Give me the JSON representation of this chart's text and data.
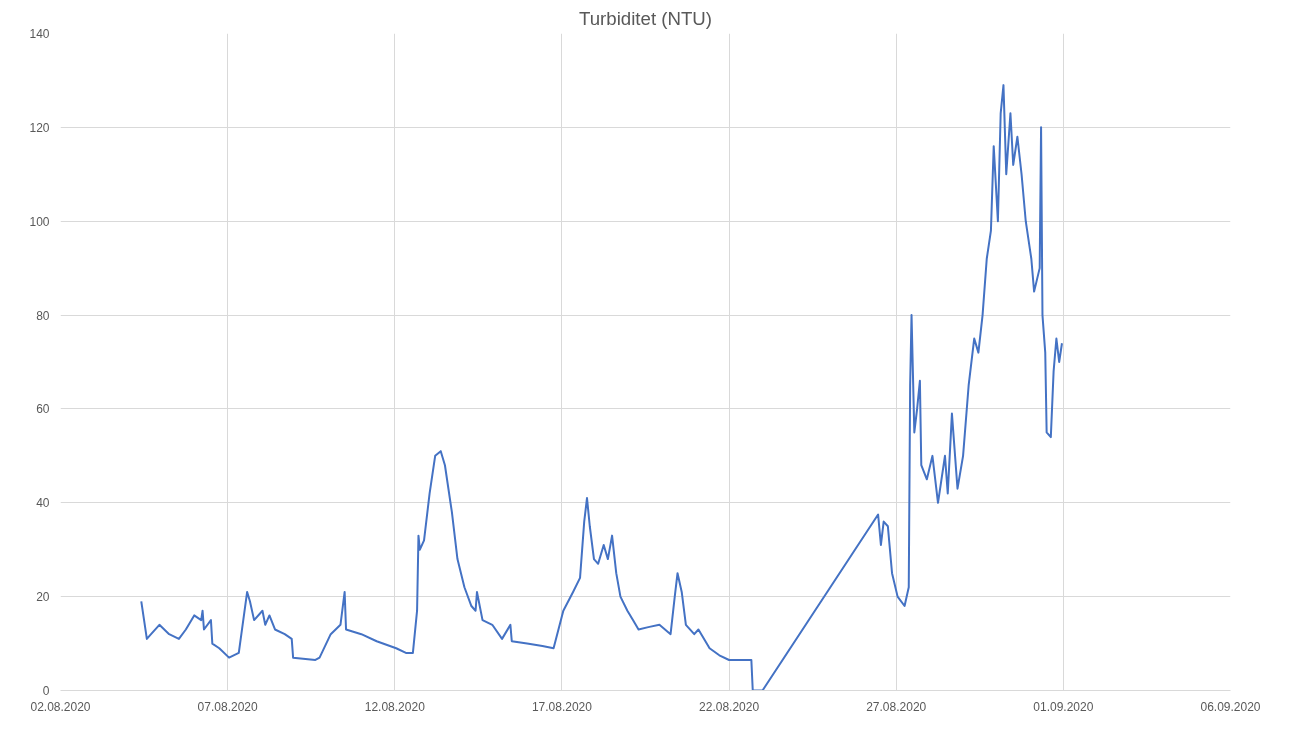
{
  "chart_data": {
    "type": "line",
    "title": "Turbiditet (NTU)",
    "xlim": [
      "2020-08-02",
      "2020-09-06"
    ],
    "xticks": [
      {
        "value": "2020-08-02",
        "label": "02.08.2020"
      },
      {
        "value": "2020-08-07",
        "label": "07.08.2020"
      },
      {
        "value": "2020-08-12",
        "label": "12.08.2020"
      },
      {
        "value": "2020-08-17",
        "label": "17.08.2020"
      },
      {
        "value": "2020-08-22",
        "label": "22.08.2020"
      },
      {
        "value": "2020-08-27",
        "label": "27.08.2020"
      },
      {
        "value": "2020-09-01",
        "label": "01.09.2020"
      },
      {
        "value": "2020-09-06",
        "label": "06.09.2020"
      }
    ],
    "ylim": [
      0,
      140
    ],
    "yticks": [
      0,
      20,
      40,
      60,
      80,
      100,
      120,
      140
    ],
    "grid": true,
    "marker": "none",
    "line_style": "solid",
    "series": [
      {
        "color": "#4472c4",
        "x": [
          "2020-08-04T10:00",
          "2020-08-04T14:00",
          "2020-08-04T17:00",
          "2020-08-04T23:00",
          "2020-08-05T06:00",
          "2020-08-05T13:00",
          "2020-08-05T18:00",
          "2020-08-06T00:00",
          "2020-08-06T05:00",
          "2020-08-06T06:00",
          "2020-08-06T07:00",
          "2020-08-06T12:00",
          "2020-08-06T13:00",
          "2020-08-06T18:00",
          "2020-08-07T01:00",
          "2020-08-07T08:00",
          "2020-08-07T14:00",
          "2020-08-07T16:00",
          "2020-08-07T19:00",
          "2020-08-08T01:00",
          "2020-08-08T03:00",
          "2020-08-08T06:00",
          "2020-08-08T10:00",
          "2020-08-08T17:00",
          "2020-08-08T22:00",
          "2020-08-08T23:00",
          "2020-08-09T15:00",
          "2020-08-09T18:00",
          "2020-08-10T02:00",
          "2020-08-10T09:00",
          "2020-08-10T12:00",
          "2020-08-10T13:00",
          "2020-08-11T00:00",
          "2020-08-11T11:00",
          "2020-08-12T01:00",
          "2020-08-12T08:00",
          "2020-08-12T13:00",
          "2020-08-12T16:00",
          "2020-08-12T17:00",
          "2020-08-12T18:00",
          "2020-08-12T21:00",
          "2020-08-13T01:00",
          "2020-08-13T05:00",
          "2020-08-13T09:00",
          "2020-08-13T12:00",
          "2020-08-13T17:00",
          "2020-08-13T21:00",
          "2020-08-14T02:00",
          "2020-08-14T07:00",
          "2020-08-14T10:00",
          "2020-08-14T11:00",
          "2020-08-14T15:00",
          "2020-08-14T22:00",
          "2020-08-15T05:00",
          "2020-08-15T11:00",
          "2020-08-15T12:00",
          "2020-08-15T23:00",
          "2020-08-16T10:00",
          "2020-08-16T18:00",
          "2020-08-17T01:00",
          "2020-08-17T08:00",
          "2020-08-17T13:00",
          "2020-08-17T16:00",
          "2020-08-17T18:00",
          "2020-08-17T20:00",
          "2020-08-17T23:00",
          "2020-08-18T02:00",
          "2020-08-18T06:00",
          "2020-08-18T09:00",
          "2020-08-18T12:00",
          "2020-08-18T15:00",
          "2020-08-18T18:00",
          "2020-08-18T23:00",
          "2020-08-19T03:00",
          "2020-08-19T07:00",
          "2020-08-19T14:00",
          "2020-08-19T22:00",
          "2020-08-20T06:00",
          "2020-08-20T09:00",
          "2020-08-20T11:00",
          "2020-08-20T14:00",
          "2020-08-20T17:00",
          "2020-08-20T23:00",
          "2020-08-21T02:00",
          "2020-08-21T10:00",
          "2020-08-21T17:00",
          "2020-08-22T00:00",
          "2020-08-22T16:00",
          "2020-08-22T17:00",
          "2020-08-23T00:00",
          "2020-08-26T11:00",
          "2020-08-26T13:00",
          "2020-08-26T15:00",
          "2020-08-26T18:00",
          "2020-08-26T21:00",
          "2020-08-27T01:00",
          "2020-08-27T06:00",
          "2020-08-27T09:00",
          "2020-08-27T10:00",
          "2020-08-27T11:00",
          "2020-08-27T13:00",
          "2020-08-27T15:00",
          "2020-08-27T17:00",
          "2020-08-27T18:00",
          "2020-08-27T22:00",
          "2020-08-28T02:00",
          "2020-08-28T06:00",
          "2020-08-28T11:00",
          "2020-08-28T13:00",
          "2020-08-28T16:00",
          "2020-08-28T20:00",
          "2020-08-29T00:00",
          "2020-08-29T04:00",
          "2020-08-29T08:00",
          "2020-08-29T11:00",
          "2020-08-29T14:00",
          "2020-08-29T17:00",
          "2020-08-29T20:00",
          "2020-08-29T22:00",
          "2020-08-30T01:00",
          "2020-08-30T03:00",
          "2020-08-30T05:00",
          "2020-08-30T07:00",
          "2020-08-30T10:00",
          "2020-08-30T12:00",
          "2020-08-30T15:00",
          "2020-08-30T18:00",
          "2020-08-30T21:00",
          "2020-08-31T01:00",
          "2020-08-31T03:00",
          "2020-08-31T07:00",
          "2020-08-31T08:00",
          "2020-08-31T09:00",
          "2020-08-31T11:00",
          "2020-08-31T12:00",
          "2020-08-31T15:00",
          "2020-08-31T17:00",
          "2020-08-31T19:00",
          "2020-08-31T21:00",
          "2020-08-31T23:00"
        ],
        "values": [
          19,
          11,
          12,
          14,
          12,
          11,
          13,
          16,
          15,
          17,
          13,
          15,
          10,
          9,
          7,
          8,
          21,
          19,
          15,
          17,
          14,
          16,
          13,
          12,
          11,
          7,
          6.5,
          7,
          12,
          14,
          21,
          13,
          12,
          10.5,
          9,
          8,
          8,
          17,
          33,
          30,
          32,
          42,
          50,
          51,
          48,
          38,
          28,
          22,
          18,
          17,
          21,
          15,
          14,
          11,
          14,
          10.5,
          10,
          9.5,
          9,
          17,
          21,
          24,
          36,
          41,
          35,
          28,
          27,
          31,
          28,
          33,
          25,
          20,
          17,
          15,
          13,
          13.5,
          14,
          12,
          20,
          25,
          21,
          14,
          12,
          13,
          9,
          7.5,
          6.5,
          6.5,
          0,
          0,
          37.5,
          31,
          36,
          35,
          25,
          20,
          18,
          22,
          65,
          80,
          55,
          60,
          66,
          48,
          45,
          50,
          40,
          50,
          42,
          59,
          43,
          50,
          65,
          75,
          72,
          80,
          92,
          98,
          116,
          100,
          123,
          129,
          110,
          123,
          112,
          118,
          110,
          100,
          92,
          85,
          90,
          120,
          80,
          72,
          55,
          54,
          68,
          75,
          70,
          74
        ]
      }
    ]
  }
}
